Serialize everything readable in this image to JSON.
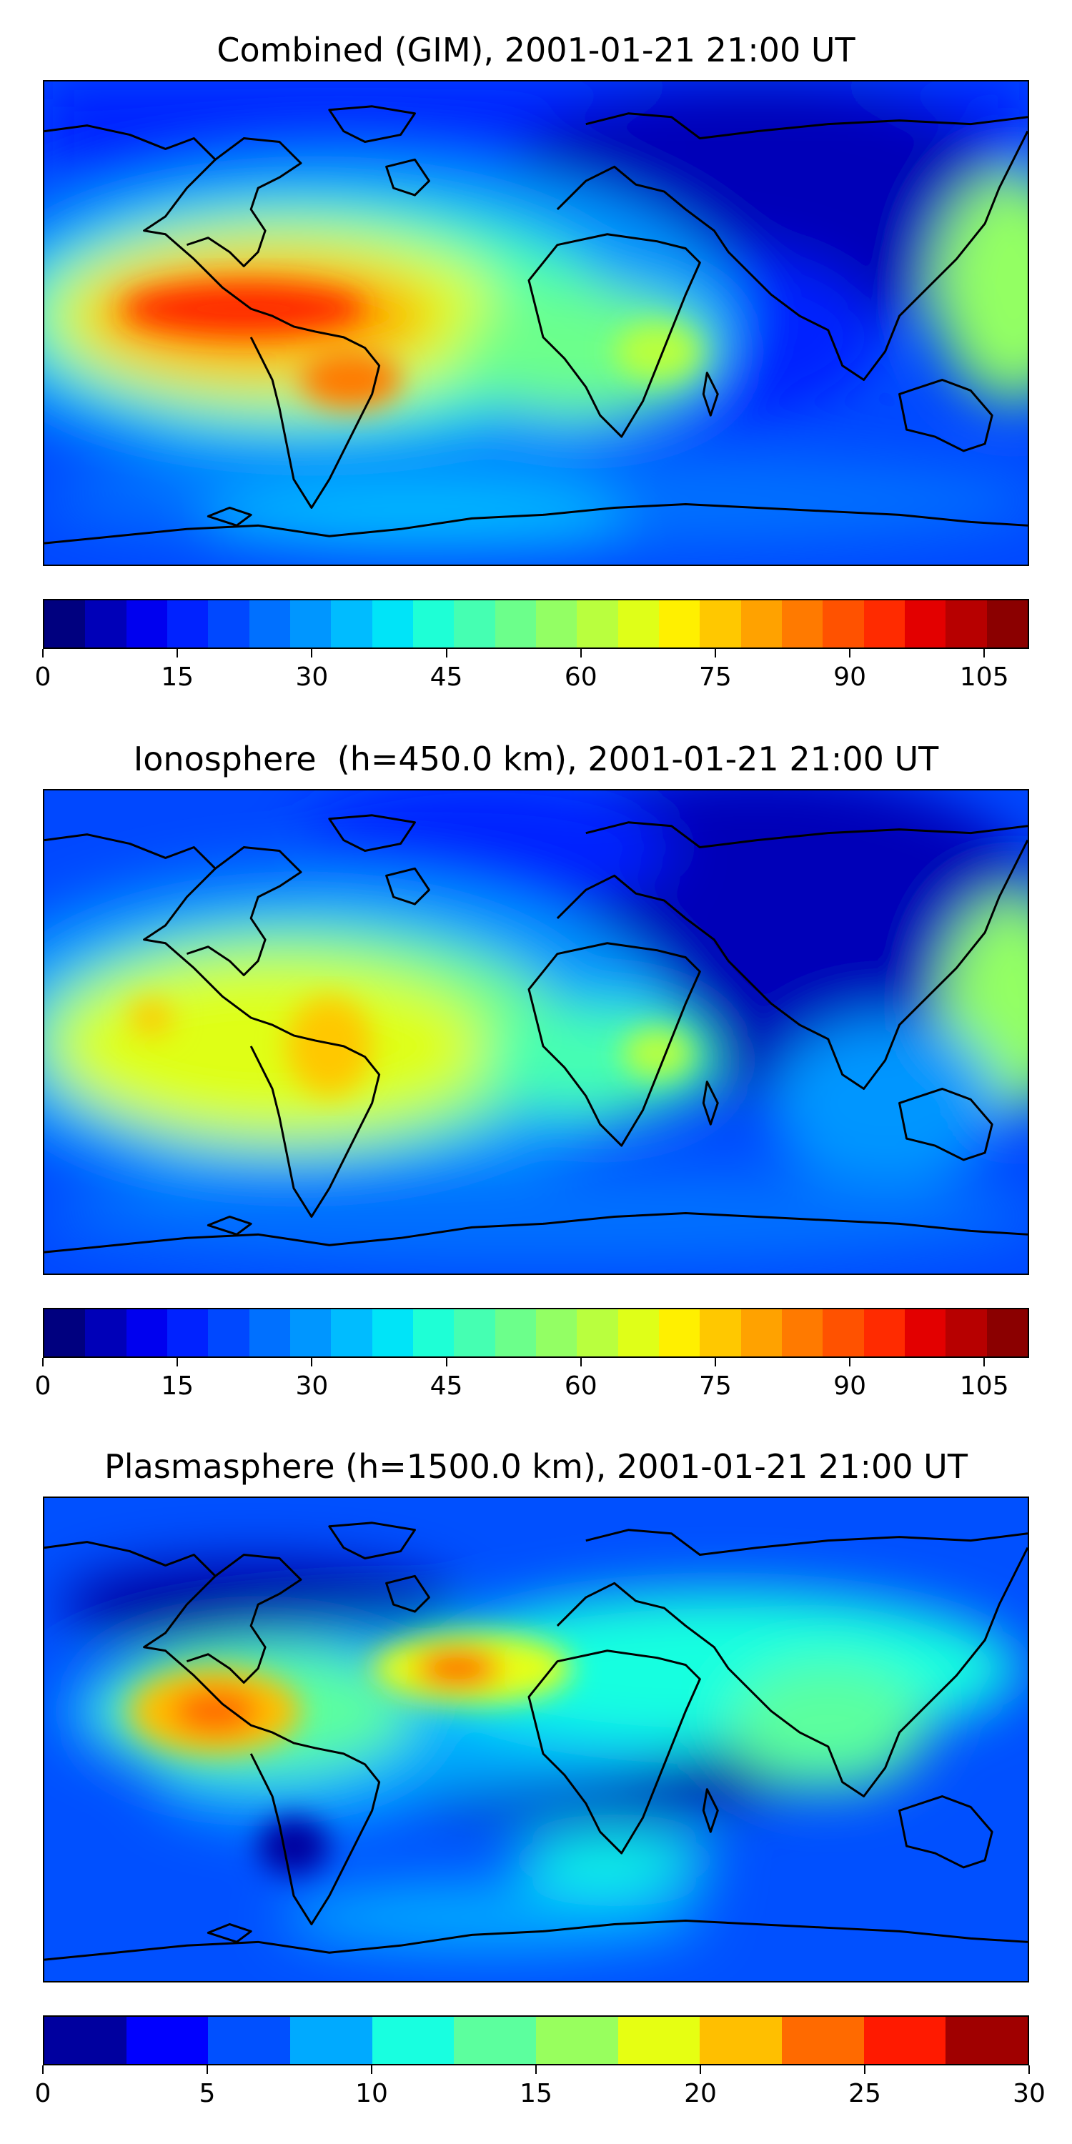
{
  "panels": [
    {
      "title": "Combined (GIM), 2001-01-21 21:00 UT",
      "colorbar": {
        "colors": [
          "#00007f",
          "#0000b8",
          "#0000ef",
          "#0022ff",
          "#0048ff",
          "#0070ff",
          "#0096ff",
          "#00bcff",
          "#00e4f8",
          "#1effd6",
          "#45ffb2",
          "#6cff8b",
          "#93ff64",
          "#b9ff3e",
          "#dfff18",
          "#fff000",
          "#ffc800",
          "#ffa200",
          "#ff7a00",
          "#ff5200",
          "#ff2b00",
          "#e30000",
          "#b70000",
          "#8b0000"
        ],
        "boundaries": [
          0,
          5,
          10,
          15,
          20,
          25,
          30,
          35,
          40,
          45,
          50,
          55,
          60,
          65,
          70,
          75,
          80,
          85,
          90,
          95,
          100,
          105,
          110
        ],
        "ticks": [
          "0",
          "15",
          "30",
          "45",
          "60",
          "75",
          "90",
          "105"
        ],
        "tick_values": [
          0,
          15,
          30,
          45,
          60,
          75,
          90,
          105
        ],
        "range": [
          0,
          110
        ]
      }
    },
    {
      "title": "Ionosphere  (h=450.0 km), 2001-01-21 21:00 UT",
      "colorbar": {
        "colors": [
          "#00007f",
          "#0000b8",
          "#0000ef",
          "#0022ff",
          "#0048ff",
          "#0070ff",
          "#0096ff",
          "#00bcff",
          "#00e4f8",
          "#1effd6",
          "#45ffb2",
          "#6cff8b",
          "#93ff64",
          "#b9ff3e",
          "#dfff18",
          "#fff000",
          "#ffc800",
          "#ffa200",
          "#ff7a00",
          "#ff5200",
          "#ff2b00",
          "#e30000",
          "#b70000",
          "#8b0000"
        ],
        "boundaries": [
          0,
          5,
          10,
          15,
          20,
          25,
          30,
          35,
          40,
          45,
          50,
          55,
          60,
          65,
          70,
          75,
          80,
          85,
          90,
          95,
          100,
          105,
          110
        ],
        "ticks": [
          "0",
          "15",
          "30",
          "45",
          "60",
          "75",
          "90",
          "105"
        ],
        "tick_values": [
          0,
          15,
          30,
          45,
          60,
          75,
          90,
          105
        ],
        "range": [
          0,
          110
        ]
      }
    },
    {
      "title": "Plasmasphere (h=1500.0 km), 2001-01-21 21:00 UT",
      "colorbar": {
        "colors": [
          "#00009f",
          "#0000ff",
          "#0050ff",
          "#00aaff",
          "#18ffe0",
          "#5cff9e",
          "#98ff5e",
          "#e6ff12",
          "#ffbf00",
          "#ff6a00",
          "#ff1a00",
          "#a00000"
        ],
        "boundaries": [
          0,
          2.5,
          5,
          7.5,
          10,
          12.5,
          15,
          17.5,
          20,
          22.5,
          25,
          27.5,
          30
        ],
        "ticks": [
          "0",
          "5",
          "10",
          "15",
          "20",
          "25",
          "30"
        ],
        "tick_values": [
          0,
          5,
          10,
          15,
          20,
          25,
          30
        ],
        "range": [
          0,
          30
        ]
      }
    }
  ]
}
